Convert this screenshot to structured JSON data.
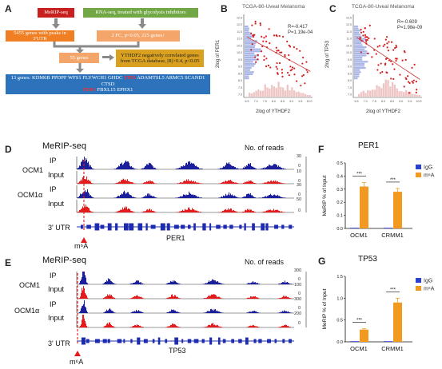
{
  "panels": {
    "A": "A",
    "B": "B",
    "C": "C",
    "D": "D",
    "E": "E",
    "F": "F",
    "G": "G"
  },
  "flow": {
    "merip": "MeRIP-seq",
    "rnaseq": "RNA-seq, treated with glycolysis inhibitors",
    "peaks": "5455 genes with peaks in 3'UTR",
    "fc": "2 FC, p<0.05, 225 genes↑",
    "genes55": "55 genes",
    "ythdf2": "YTHDF2 negatively correlated genes from TCGA database, |R|>0.4, p<0.05",
    "final_prefix": "13 genes: KDM6B PPDPF WFS1 FLYWCH1 GHDC",
    "final_tp53": "TP53",
    "final_mid": "ADAMTSL5 ARMC5 SCAND1 CTSD",
    "final_per1": "PER1",
    "final_suffix": "FBXL15 EPHX1"
  },
  "scatterB": {
    "title": "TCGA-80-Uveal Melanoma",
    "r": "R=-0.417",
    "p": "P=1.19e-04",
    "xlabel": "2log of YTHDF2",
    "ylabel": "2log of PER1",
    "yticks": [
      "12.5",
      "12.0",
      "11.5",
      "11.0",
      "10.5",
      "10.0",
      "9.5",
      "9.0",
      "8.5",
      "8.0",
      "7.5",
      "7.0"
    ],
    "xticks": [
      "6.5",
      "7.0",
      "7.5",
      "8.0",
      "8.5",
      "9.0",
      "9.5",
      "10.0"
    ]
  },
  "scatterC": {
    "title": "TCGA-80-Uveal Melanoma",
    "r": "R=-0.609",
    "p": "P=1.98e-09",
    "xlabel": "2log of YTHDF2",
    "ylabel": "2log of TP53",
    "yticks": [
      "12.5",
      "12.0",
      "11.5",
      "11.0",
      "10.5",
      "10.0",
      "9.5",
      "9.0",
      "8.5",
      "8.0",
      "7.5",
      "7.0"
    ],
    "xticks": [
      "6.5",
      "7.0",
      "7.5",
      "8.0",
      "8.5",
      "9.0",
      "9.5",
      "10.0"
    ]
  },
  "trackD": {
    "title": "MeRIP-seq",
    "reads": "No. of reads",
    "cell1": "OCM1",
    "cell2": "OCM1α",
    "ip": "IP",
    "input": "Input",
    "scale": [
      "30",
      "0",
      "10",
      "0",
      "30",
      "0",
      "50",
      "0"
    ],
    "utr": "3' UTR",
    "gene": "PER1",
    "m6a": "m⁶A"
  },
  "trackE": {
    "title": "MeRIP-seq",
    "reads": "No. of reads",
    "cell1": "OCM1",
    "cell2": "OCM1α",
    "ip": "IP",
    "input": "Input",
    "scale": [
      "300",
      "0",
      "100",
      "0",
      "300",
      "0",
      "200",
      "0"
    ],
    "utr": "3' UTR",
    "gene": "TP53",
    "m6a": "m⁶A"
  },
  "chart_data": [
    {
      "type": "bar",
      "title": "PER1",
      "ylabel": "MeRIP % of Input",
      "categories": [
        "OCM1",
        "CRMM1"
      ],
      "series": [
        {
          "name": "IgG",
          "values": [
            0.0,
            0.0
          ],
          "color": "#2b3fd1"
        },
        {
          "name": "m⁶A",
          "values": [
            0.32,
            0.28
          ],
          "color": "#f29a1f"
        }
      ],
      "errors": [
        0.03,
        0.025
      ],
      "ylim": [
        0,
        0.5
      ],
      "yticks": [
        "0.0",
        "0.1",
        "0.2",
        "0.3",
        "0.4",
        "0.5"
      ],
      "significance": [
        "***",
        "***"
      ]
    },
    {
      "type": "bar",
      "title": "TP53",
      "ylabel": "MeRIP % of Input",
      "categories": [
        "OCM1",
        "CRMM1"
      ],
      "series": [
        {
          "name": "IgG",
          "values": [
            0.0,
            0.0
          ],
          "color": "#2b3fd1"
        },
        {
          "name": "m⁶A",
          "values": [
            0.28,
            0.9
          ],
          "color": "#f29a1f"
        }
      ],
      "errors": [
        0.02,
        0.1
      ],
      "ylim": [
        0,
        1.5
      ],
      "yticks": [
        "0.0",
        "0.5",
        "1.0",
        "1.5"
      ],
      "significance": [
        "***",
        "***"
      ]
    }
  ]
}
